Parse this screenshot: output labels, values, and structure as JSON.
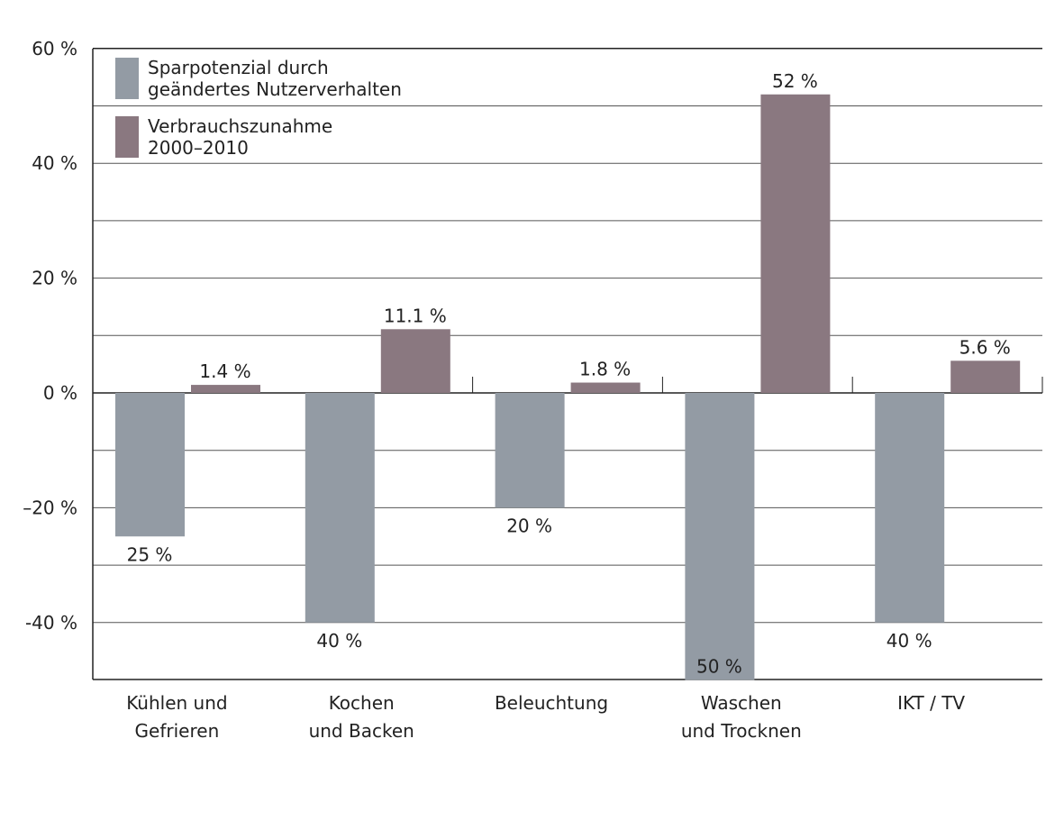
{
  "chart_data": {
    "type": "bar",
    "title": "",
    "xlabel": "",
    "ylabel": "",
    "ylim": [
      -50,
      60
    ],
    "grid": true,
    "yticks": [
      60,
      40,
      20,
      0,
      -20,
      -40
    ],
    "ytick_labels": [
      "60 %",
      "40 %",
      "20 %",
      "0 %",
      "–20 %",
      "-40 %"
    ],
    "categories": [
      [
        "Kühlen und",
        "Gefrieren"
      ],
      [
        "Kochen",
        "und Backen"
      ],
      [
        "Beleuchtung"
      ],
      [
        "Waschen",
        "und Trocknen"
      ],
      [
        "IKT / TV"
      ]
    ],
    "series": [
      {
        "name": [
          "Sparpotenzial durch",
          "geändertes Nutzerverhalten"
        ],
        "color": "#939ba4",
        "values": [
          -25,
          -40,
          -20,
          -50,
          -40
        ],
        "labels": [
          "25 %",
          "40 %",
          "20 %",
          "50 %",
          "40 %"
        ]
      },
      {
        "name": [
          "Verbrauchszunahme",
          "2000–2010"
        ],
        "color": "#8a7880",
        "values": [
          1.4,
          11.1,
          1.8,
          52,
          5.6
        ],
        "labels": [
          "1.4 %",
          "11.1 %",
          "1.8 %",
          "52 %",
          "5.6 %"
        ]
      }
    ],
    "legend": "top-left"
  }
}
